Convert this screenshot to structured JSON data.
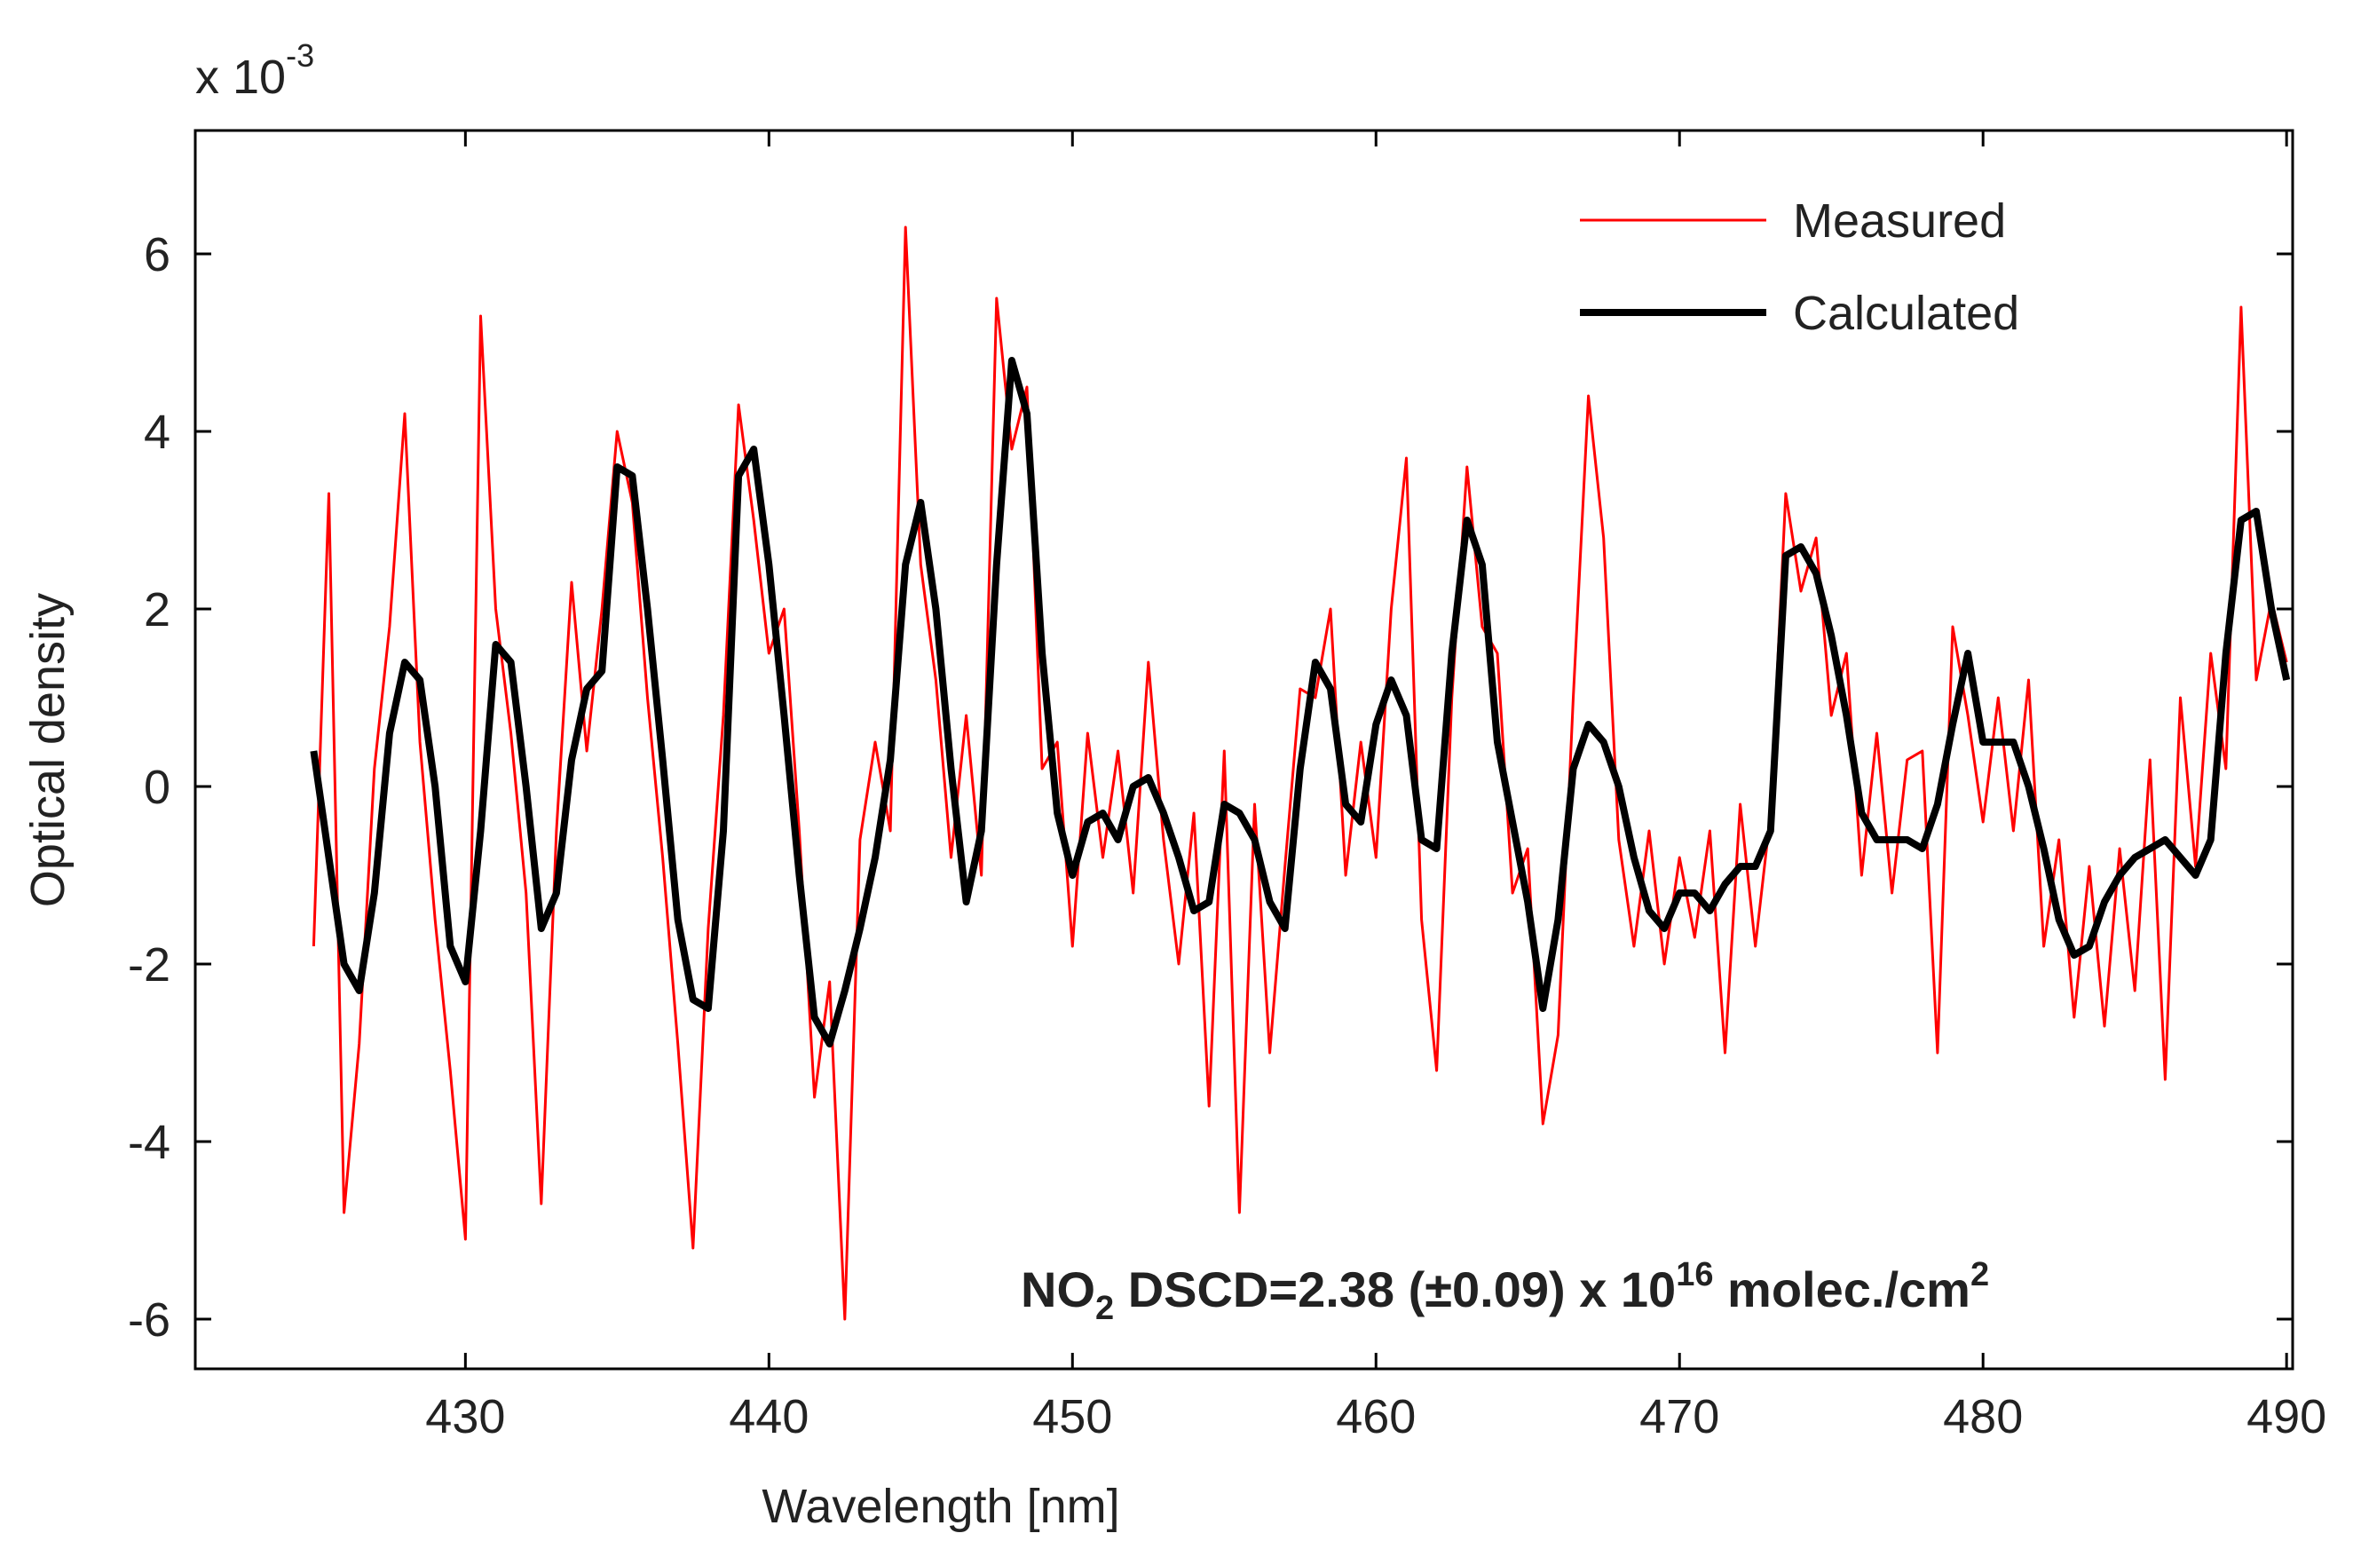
{
  "chart_data": {
    "type": "line",
    "xlabel": "Wavelength [nm]",
    "ylabel": "Optical density",
    "y_multiplier": {
      "base": "x 10",
      "exponent": "-3"
    },
    "annotation": [
      "NO",
      "2",
      " DSCD=2.38 (±0.09) x 10",
      "16",
      " molec./cm",
      "2"
    ],
    "xlim": [
      421.1,
      490.2
    ],
    "ylim": [
      -6.56,
      7.39
    ],
    "xticks": [
      430,
      440,
      450,
      460,
      470,
      480,
      490
    ],
    "yticks": [
      -6,
      -4,
      -2,
      0,
      2,
      4,
      6
    ],
    "grid": false,
    "legend": "upper right",
    "x": [
      425,
      425.5,
      426,
      426.5,
      427,
      427.5,
      428,
      428.5,
      429,
      429.5,
      430,
      430.5,
      431,
      431.5,
      432,
      432.5,
      433,
      433.5,
      434,
      434.5,
      435,
      435.5,
      436,
      436.5,
      437,
      437.5,
      438,
      438.5,
      439,
      439.5,
      440,
      440.5,
      441,
      441.5,
      442,
      442.5,
      443,
      443.5,
      444,
      444.5,
      445,
      445.5,
      446,
      446.5,
      447,
      447.5,
      448,
      448.5,
      449,
      449.5,
      450,
      450.5,
      451,
      451.5,
      452,
      452.5,
      453,
      453.5,
      454,
      454.5,
      455,
      455.5,
      456,
      456.5,
      457,
      457.5,
      458,
      458.5,
      459,
      459.5,
      460,
      460.5,
      461,
      461.5,
      462,
      462.5,
      463,
      463.5,
      464,
      464.5,
      465,
      465.5,
      466,
      466.5,
      467,
      467.5,
      468,
      468.5,
      469,
      469.5,
      470,
      470.5,
      471,
      471.5,
      472,
      472.5,
      473,
      473.5,
      474,
      474.5,
      475,
      475.5,
      476,
      476.5,
      477,
      477.5,
      478,
      478.5,
      479,
      479.5,
      480,
      480.5,
      481,
      481.5,
      482,
      482.5,
      483,
      483.5,
      484,
      484.5,
      485,
      485.5,
      486,
      486.5,
      487,
      487.5,
      488,
      488.5,
      489,
      489.5,
      490
    ],
    "series": [
      {
        "name": "Measured",
        "color": "#ff0000",
        "width": 3,
        "values": [
          -1.8,
          3.3,
          -4.8,
          -2.9,
          0.2,
          1.8,
          4.2,
          0.5,
          -1.5,
          -3.2,
          -5.1,
          5.3,
          2.0,
          0.6,
          -1.2,
          -4.7,
          -0.5,
          2.3,
          0.4,
          2.0,
          4.0,
          3.2,
          1.0,
          -0.8,
          -2.9,
          -5.2,
          -1.6,
          0.8,
          4.3,
          3.0,
          1.5,
          2.0,
          -0.5,
          -3.5,
          -2.2,
          -6.0,
          -0.6,
          0.5,
          -0.5,
          6.3,
          2.5,
          1.2,
          -0.8,
          0.8,
          -1.0,
          5.5,
          3.8,
          4.5,
          0.2,
          0.5,
          -1.8,
          0.6,
          -0.8,
          0.4,
          -1.2,
          1.4,
          -0.6,
          -2.0,
          -0.3,
          -3.6,
          0.4,
          -4.8,
          -0.2,
          -3.0,
          -0.9,
          1.1,
          1.0,
          2.0,
          -1.0,
          0.5,
          -0.8,
          2.0,
          3.7,
          -1.5,
          -3.2,
          1.0,
          3.6,
          1.8,
          1.5,
          -1.2,
          -0.7,
          -3.8,
          -2.8,
          1.0,
          4.4,
          2.8,
          -0.6,
          -1.8,
          -0.5,
          -2.0,
          -0.8,
          -1.7,
          -0.5,
          -3.0,
          -0.2,
          -1.8,
          -0.3,
          3.3,
          2.2,
          2.8,
          0.8,
          1.5,
          -1.0,
          0.6,
          -1.2,
          0.3,
          0.4,
          -3.0,
          1.8,
          0.8,
          -0.4,
          1.0,
          -0.5,
          1.2,
          -1.8,
          -0.6,
          -2.6,
          -0.9,
          -2.7,
          -0.7,
          -2.3,
          0.3,
          -3.3,
          1.0,
          -0.9,
          1.5,
          0.2,
          5.4,
          1.2,
          2.1,
          1.4
        ]
      },
      {
        "name": "Calculated",
        "color": "#000000",
        "width": 8,
        "values": [
          0.4,
          -0.8,
          -2.0,
          -2.3,
          -1.2,
          0.6,
          1.4,
          1.2,
          0.0,
          -1.8,
          -2.2,
          -0.5,
          1.6,
          1.4,
          0.0,
          -1.6,
          -1.2,
          0.3,
          1.1,
          1.3,
          3.6,
          3.5,
          2.0,
          0.3,
          -1.5,
          -2.4,
          -2.5,
          -0.5,
          3.5,
          3.8,
          2.5,
          0.8,
          -1.0,
          -2.6,
          -2.9,
          -2.3,
          -1.6,
          -0.8,
          0.3,
          2.5,
          3.2,
          2.0,
          0.2,
          -1.3,
          -0.5,
          2.5,
          4.8,
          4.2,
          1.5,
          -0.3,
          -1.0,
          -0.4,
          -0.3,
          -0.6,
          0.0,
          0.1,
          -0.3,
          -0.8,
          -1.4,
          -1.3,
          -0.2,
          -0.3,
          -0.6,
          -1.3,
          -1.6,
          0.2,
          1.4,
          1.1,
          -0.2,
          -0.4,
          0.7,
          1.2,
          0.8,
          -0.6,
          -0.7,
          1.5,
          3.0,
          2.5,
          0.5,
          -0.4,
          -1.3,
          -2.5,
          -1.5,
          0.2,
          0.7,
          0.5,
          0.0,
          -0.8,
          -1.4,
          -1.6,
          -1.2,
          -1.2,
          -1.4,
          -1.1,
          -0.9,
          -0.9,
          -0.5,
          2.6,
          2.7,
          2.4,
          1.7,
          0.8,
          -0.3,
          -0.6,
          -0.6,
          -0.6,
          -0.7,
          -0.2,
          0.7,
          1.5,
          0.5,
          0.5,
          0.5,
          0.0,
          -0.7,
          -1.5,
          -1.9,
          -1.8,
          -1.3,
          -1.0,
          -0.8,
          -0.7,
          -0.6,
          -0.8,
          -1.0,
          -0.6,
          1.5,
          3.0,
          3.1,
          2.0,
          1.2
        ]
      }
    ]
  }
}
